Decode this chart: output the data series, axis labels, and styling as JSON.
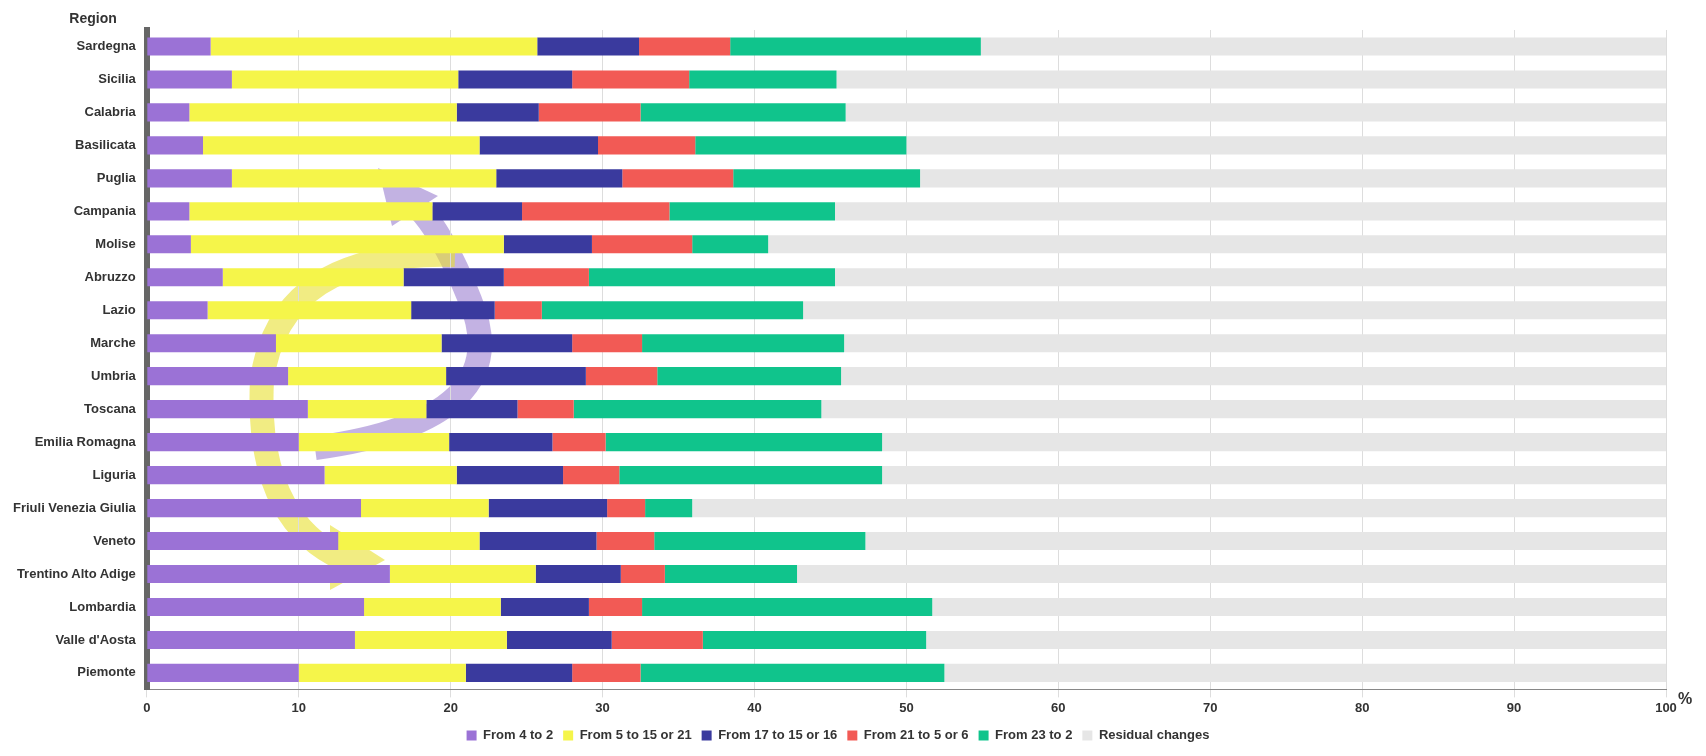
{
  "chart_data": {
    "type": "bar",
    "orientation": "horizontal",
    "stacked": true,
    "ylabel": "Region",
    "xlabel": "%",
    "categories": [
      "Sardegna",
      "Sicilia",
      "Calabria",
      "Basilicata",
      "Puglia",
      "Campania",
      "Molise",
      "Abruzzo",
      "Lazio",
      "Marche",
      "Umbria",
      "Toscana",
      "Emilia Romagna",
      "Liguria",
      "Friuli Venezia Giulia",
      "Veneto",
      "Trentino Alto Adige",
      "Lombardia",
      "Valle d'Aosta",
      "Piemonte"
    ],
    "series": [
      {
        "name": "From 4 to 2",
        "color": "#9b72d6",
        "values": [
          4.2,
          5.6,
          2.8,
          3.7,
          5.6,
          2.8,
          2.9,
          5.0,
          4.0,
          8.5,
          9.3,
          10.6,
          10.0,
          11.7,
          14.1,
          12.6,
          16.0,
          14.3,
          13.7,
          10.0
        ]
      },
      {
        "name": "From 5 to 15 or 21",
        "color": "#f5f54a",
        "values": [
          21.5,
          14.9,
          17.6,
          18.2,
          17.4,
          16.0,
          20.6,
          11.9,
          13.4,
          10.9,
          10.4,
          7.8,
          9.9,
          8.7,
          8.4,
          9.3,
          9.6,
          9.0,
          10.0,
          11.0
        ]
      },
      {
        "name": "From 17 to 15 or 16",
        "color": "#3a3a9e",
        "values": [
          6.7,
          7.5,
          5.4,
          7.8,
          8.3,
          5.9,
          5.8,
          6.6,
          5.5,
          8.6,
          9.2,
          6.0,
          6.8,
          7.0,
          7.8,
          7.7,
          5.6,
          5.8,
          6.9,
          7.0
        ]
      },
      {
        "name": "From 21 to 5 or 6",
        "color": "#f25a55",
        "values": [
          6.0,
          7.7,
          6.7,
          6.4,
          7.3,
          9.7,
          6.6,
          5.6,
          3.1,
          4.6,
          4.7,
          3.7,
          3.5,
          3.7,
          2.5,
          3.8,
          2.9,
          3.5,
          6.0,
          4.5
        ]
      },
      {
        "name": "From 23 to 2",
        "color": "#10c48c",
        "values": [
          16.5,
          9.7,
          13.5,
          13.9,
          12.3,
          10.9,
          5.0,
          16.2,
          17.2,
          13.3,
          12.1,
          16.3,
          18.2,
          17.3,
          3.1,
          13.9,
          8.7,
          19.1,
          14.7,
          20.0
        ]
      },
      {
        "name": "Residual changes",
        "color": "#e6e6e6",
        "values": [
          45.1,
          54.6,
          54.0,
          50.0,
          49.1,
          54.7,
          59.1,
          54.7,
          56.8,
          54.1,
          54.3,
          55.6,
          51.6,
          51.6,
          64.1,
          52.7,
          57.2,
          48.3,
          48.7,
          47.5
        ]
      }
    ],
    "xlim": [
      0,
      100
    ],
    "xticks": [
      0,
      10,
      20,
      30,
      40,
      50,
      60,
      70,
      80,
      90,
      100
    ],
    "grid": "x",
    "legend": "bottom"
  }
}
